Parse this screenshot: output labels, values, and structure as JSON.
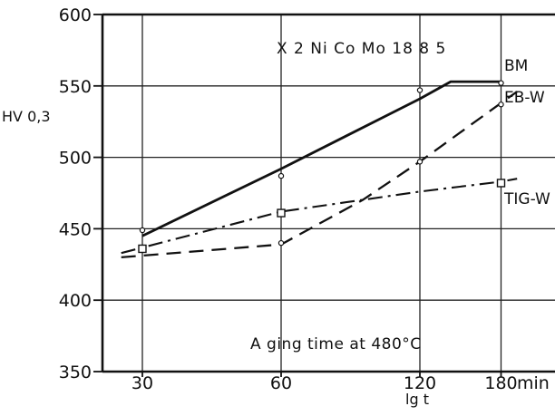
{
  "chart_data": {
    "type": "line",
    "title": "X 2 Ni Co Mo 18  8  5",
    "ylabel": "HV 0,3",
    "xlabel": "lg t",
    "x_unit": "min",
    "annotation": "A ging time at 480°C",
    "xscale": "log",
    "x_ticks": [
      30,
      60,
      120,
      180
    ],
    "y_ticks": [
      350,
      400,
      450,
      500,
      550,
      600
    ],
    "ylim": [
      350,
      600
    ],
    "grid": true,
    "series": [
      {
        "name": "BM",
        "style": "solid",
        "x": [
          30,
          60,
          120,
          140,
          180
        ],
        "y": [
          445,
          492,
          541,
          553,
          553
        ],
        "markers": [
          {
            "x": 30,
            "y": 449,
            "shape": "circle"
          },
          {
            "x": 60,
            "y": 487,
            "shape": "circle"
          },
          {
            "x": 120,
            "y": 547,
            "shape": "circle"
          },
          {
            "x": 180,
            "y": 552,
            "shape": "circle"
          }
        ]
      },
      {
        "name": "EB-W",
        "style": "dashed",
        "x": [
          27,
          60,
          90,
          120,
          180,
          195
        ],
        "y": [
          430,
          439,
          470,
          497,
          538,
          546
        ],
        "markers": [
          {
            "x": 60,
            "y": 440,
            "shape": "circle"
          },
          {
            "x": 120,
            "y": 497,
            "shape": "circle"
          },
          {
            "x": 180,
            "y": 537,
            "shape": "circle"
          }
        ]
      },
      {
        "name": "TIG-W",
        "style": "dashdot",
        "x": [
          27,
          60,
          120,
          180,
          195
        ],
        "y": [
          433,
          462,
          476,
          483,
          485
        ],
        "markers": [
          {
            "x": 30,
            "y": 436,
            "shape": "square"
          },
          {
            "x": 60,
            "y": 461,
            "shape": "square"
          },
          {
            "x": 180,
            "y": 482,
            "shape": "square"
          }
        ]
      }
    ]
  }
}
